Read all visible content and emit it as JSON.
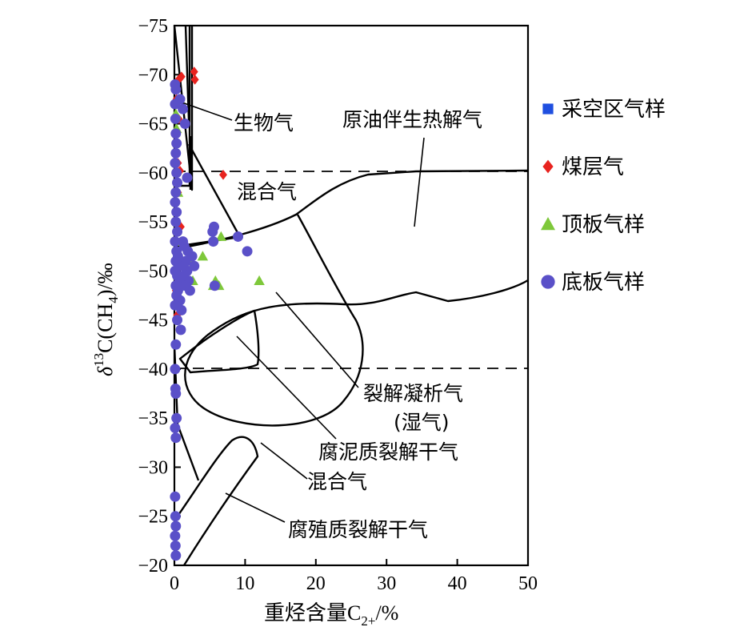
{
  "chart_data": {
    "type": "scatter",
    "xlabel": "重烃含量C",
    "xlabel_sub": "2+",
    "xlabel_unit": "/%",
    "ylabel_delta": "δ",
    "ylabel_sup": "13",
    "ylabel_main": "C(CH",
    "ylabel_sub": "4",
    "ylabel_end": ")/‰",
    "xlim": [
      0,
      50
    ],
    "ylim": [
      -20,
      -75
    ],
    "x_ticks": [
      "0",
      "10",
      "20",
      "30",
      "40",
      "50"
    ],
    "y_ticks": [
      "−75",
      "−70",
      "−65",
      "−60",
      "−55",
      "−50",
      "−45",
      "−40",
      "−35",
      "−30",
      "−25",
      "−20"
    ],
    "reference_lines_y": [
      -60,
      -40
    ],
    "legend_position": "right",
    "region_labels": {
      "biogas": "生物气",
      "oil_assoc": "原油伴生热解气",
      "mixed_top": "混合气",
      "condensate_1": "裂解凝析气",
      "condensate_2": "(湿气)",
      "sapropel": "腐泥质裂解干气",
      "mixed_bottom": "混合气",
      "humic": "腐殖质裂解干气"
    },
    "series": [
      {
        "name": "采空区气样",
        "color": "#1f4fe0",
        "marker": "square",
        "points": []
      },
      {
        "name": "煤层气",
        "color": "#e8231f",
        "marker": "diamond",
        "points": [
          [
            0.3,
            -67.5
          ],
          [
            0.6,
            -65.5
          ],
          [
            0.4,
            -63
          ],
          [
            0.5,
            -61
          ],
          [
            0.8,
            -60.2
          ],
          [
            0.5,
            -58
          ],
          [
            0.3,
            -55
          ],
          [
            0.9,
            -54.5
          ],
          [
            0.4,
            -52
          ],
          [
            0.2,
            -48
          ],
          [
            0.4,
            -45.5
          ],
          [
            1.0,
            -69.8
          ],
          [
            2.8,
            -70.3
          ],
          [
            2.9,
            -69.5
          ],
          [
            6.9,
            -59.8
          ],
          [
            0.6,
            -69.5
          ]
        ]
      },
      {
        "name": "顶板气样",
        "color": "#7ec83a",
        "marker": "triangle",
        "points": [
          [
            0.2,
            -66
          ],
          [
            0.3,
            -64.5
          ],
          [
            0.5,
            -58
          ],
          [
            0.4,
            -53
          ],
          [
            0.6,
            -51
          ],
          [
            2.4,
            -51
          ],
          [
            2.6,
            -49
          ],
          [
            4.0,
            -51.5
          ],
          [
            5.5,
            -48.5
          ],
          [
            5.8,
            -49
          ],
          [
            6.3,
            -48.5
          ],
          [
            6.6,
            -53.5
          ],
          [
            12.0,
            -49
          ],
          [
            1.5,
            -50
          ]
        ]
      },
      {
        "name": "底板气样",
        "color": "#5a50c8",
        "marker": "circle",
        "points": [
          [
            0.1,
            -69
          ],
          [
            0.2,
            -68.5
          ],
          [
            0.1,
            -67
          ],
          [
            0.15,
            -65.5
          ],
          [
            0.2,
            -64
          ],
          [
            0.3,
            -63
          ],
          [
            0.2,
            -62
          ],
          [
            0.1,
            -61
          ],
          [
            0.3,
            -60
          ],
          [
            0.4,
            -59
          ],
          [
            0.2,
            -58
          ],
          [
            0.1,
            -57
          ],
          [
            0.3,
            -56
          ],
          [
            0.2,
            -55
          ],
          [
            0.4,
            -54
          ],
          [
            0.1,
            -53
          ],
          [
            0.3,
            -52
          ],
          [
            0.5,
            -51.5
          ],
          [
            0.2,
            -51
          ],
          [
            0.6,
            -50.5
          ],
          [
            0.1,
            -50
          ],
          [
            0.4,
            -49.5
          ],
          [
            0.7,
            -49
          ],
          [
            0.2,
            -48.5
          ],
          [
            0.5,
            -48
          ],
          [
            0.3,
            -47.5
          ],
          [
            0.8,
            -47
          ],
          [
            0.1,
            -46.5
          ],
          [
            1.0,
            -46
          ],
          [
            0.4,
            -45
          ],
          [
            1.2,
            -53
          ],
          [
            1.4,
            -52.5
          ],
          [
            1.6,
            -51
          ],
          [
            1.8,
            -50
          ],
          [
            2.0,
            -49
          ],
          [
            1.5,
            -48.5
          ],
          [
            2.2,
            -48
          ],
          [
            1.1,
            -49.5
          ],
          [
            1.3,
            -50.5
          ],
          [
            2.5,
            -51.5
          ],
          [
            2.8,
            -50.5
          ],
          [
            1.9,
            -52
          ],
          [
            0.9,
            -44
          ],
          [
            0.2,
            -42.5
          ],
          [
            0.1,
            -40
          ],
          [
            0.15,
            -38
          ],
          [
            0.2,
            -37.5
          ],
          [
            0.3,
            -35
          ],
          [
            0.1,
            -34
          ],
          [
            0.2,
            -33
          ],
          [
            0.1,
            -27
          ],
          [
            0.15,
            -25
          ],
          [
            0.2,
            -24
          ],
          [
            0.1,
            -23
          ],
          [
            0.15,
            -22
          ],
          [
            0.2,
            -21
          ],
          [
            0.8,
            -67.5
          ],
          [
            1.2,
            -66.5
          ],
          [
            1.5,
            -65
          ],
          [
            1.8,
            -59.5
          ],
          [
            5.4,
            -54
          ],
          [
            5.5,
            -53
          ],
          [
            5.7,
            -48.5
          ],
          [
            9.0,
            -53.5
          ],
          [
            10.3,
            -52
          ],
          [
            5.6,
            -54.5
          ]
        ]
      }
    ]
  }
}
